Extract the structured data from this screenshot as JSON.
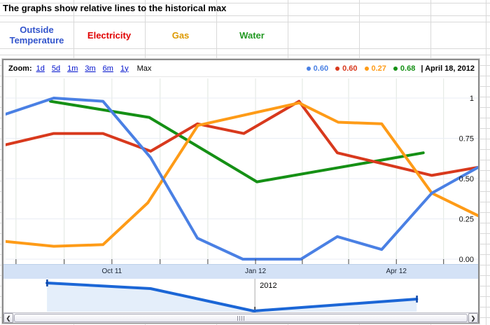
{
  "sheet": {
    "title": "The graphs show relative lines to the historical max",
    "header_cells": [
      {
        "label": "Outside Temperature",
        "color": "#3355cc"
      },
      {
        "label": "Electricity",
        "color": "#e00000"
      },
      {
        "label": "Gas",
        "color": "#dd9900"
      },
      {
        "label": "Water",
        "color": "#229922"
      }
    ]
  },
  "chart": {
    "zoom_label": "Zoom:",
    "zoom_links": [
      "1d",
      "5d",
      "1m",
      "3m",
      "6m",
      "1y"
    ],
    "zoom_max": "Max",
    "legend": {
      "items": [
        {
          "series": "Outside Temperature",
          "value": "0.60",
          "color": "#4a80e4"
        },
        {
          "series": "Electricity",
          "value": "0.60",
          "color": "#d8391d"
        },
        {
          "series": "Gas",
          "value": "0.27",
          "color": "#fe9b17"
        },
        {
          "series": "Water",
          "value": "0.68",
          "color": "#159015"
        }
      ],
      "date": "| April 18, 2012"
    },
    "scrollbar": {
      "left_arrow": "❮",
      "right_arrow": "❯"
    }
  },
  "chart_data": {
    "type": "line",
    "title": "Relative utility readings vs historical max",
    "value_axis": {
      "range": [
        0,
        1
      ],
      "ticks": [
        {
          "v": 1.0,
          "label": "1"
        },
        {
          "v": 0.75,
          "label": "0.75"
        },
        {
          "v": 0.5,
          "label": "0.50"
        },
        {
          "v": 0.25,
          "label": "0.25"
        },
        {
          "v": 0.0,
          "label": "0.00"
        }
      ]
    },
    "time_axis": {
      "gridlines_pct": [
        2.2,
        12.4,
        22.5,
        32.7,
        42.8,
        52.9,
        62.8,
        72.6,
        82.7,
        92.7
      ],
      "labels": [
        {
          "text": "Oct 11",
          "pct": 22.5
        },
        {
          "text": "Jan 12",
          "pct": 52.9
        },
        {
          "text": "Apr 12",
          "pct": 82.7
        }
      ]
    },
    "series": [
      {
        "name": "Outside Temperature",
        "color": "#4a80e4",
        "points": [
          [
            0,
            0.9
          ],
          [
            10.2,
            1.0
          ],
          [
            20.6,
            0.98
          ],
          [
            30.7,
            0.63
          ],
          [
            40.6,
            0.13
          ],
          [
            50.2,
            0.0
          ],
          [
            62.5,
            0.0
          ],
          [
            70.2,
            0.14
          ],
          [
            79.6,
            0.06
          ],
          [
            90.2,
            0.41
          ],
          [
            100,
            0.57
          ]
        ]
      },
      {
        "name": "Electricity",
        "color": "#d8391d",
        "points": [
          [
            0,
            0.71
          ],
          [
            10.2,
            0.78
          ],
          [
            20.6,
            0.78
          ],
          [
            30.7,
            0.67
          ],
          [
            40.6,
            0.84
          ],
          [
            50.4,
            0.78
          ],
          [
            62.1,
            0.98
          ],
          [
            70.2,
            0.66
          ],
          [
            90.2,
            0.52
          ],
          [
            100,
            0.57
          ]
        ]
      },
      {
        "name": "Gas",
        "color": "#fe9b17",
        "points": [
          [
            0,
            0.11
          ],
          [
            10.2,
            0.08
          ],
          [
            20.6,
            0.09
          ],
          [
            30.1,
            0.35
          ],
          [
            40.7,
            0.83
          ],
          [
            62.1,
            0.97
          ],
          [
            70.4,
            0.85
          ],
          [
            79.6,
            0.84
          ],
          [
            90.2,
            0.41
          ],
          [
            100,
            0.27
          ]
        ]
      },
      {
        "name": "Water",
        "color": "#159015",
        "points": [
          [
            9.5,
            0.98
          ],
          [
            30.4,
            0.88
          ],
          [
            53.2,
            0.48
          ],
          [
            88.4,
            0.66
          ]
        ]
      }
    ],
    "overview": {
      "line_color": "#1b66d6",
      "points": [
        [
          8.8,
          12.5
        ],
        [
          30.8,
          29.2
        ],
        [
          52.7,
          95.8
        ],
        [
          87.4,
          60.4
        ]
      ],
      "year_divider": {
        "pct": 53.0,
        "label": "2012"
      }
    }
  }
}
